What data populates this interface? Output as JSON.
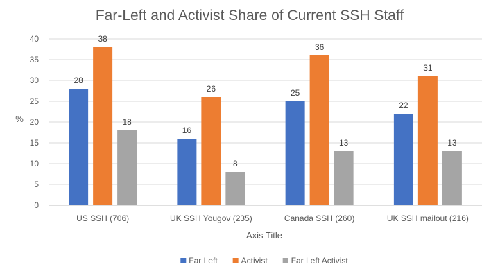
{
  "chart_data": {
    "type": "bar",
    "title": "Far-Left and Activist Share of Current SSH Staff",
    "xlabel": "Axis Title",
    "ylabel": "%",
    "ylim": [
      0,
      40
    ],
    "yticks": [
      0,
      5,
      10,
      15,
      20,
      25,
      30,
      35,
      40
    ],
    "grid": true,
    "legend_position": "bottom",
    "categories": [
      "US SSH (706)",
      "UK SSH Yougov (235)",
      "Canada SSH (260)",
      "UK SSH mailout (216)"
    ],
    "series": [
      {
        "name": "Far Left",
        "color": "#4472c4",
        "values": [
          28,
          16,
          25,
          22
        ]
      },
      {
        "name": "Activist",
        "color": "#ed7d31",
        "values": [
          38,
          26,
          36,
          31
        ]
      },
      {
        "name": "Far Left Activist",
        "color": "#a5a5a5",
        "values": [
          18,
          8,
          13,
          13
        ]
      }
    ]
  }
}
